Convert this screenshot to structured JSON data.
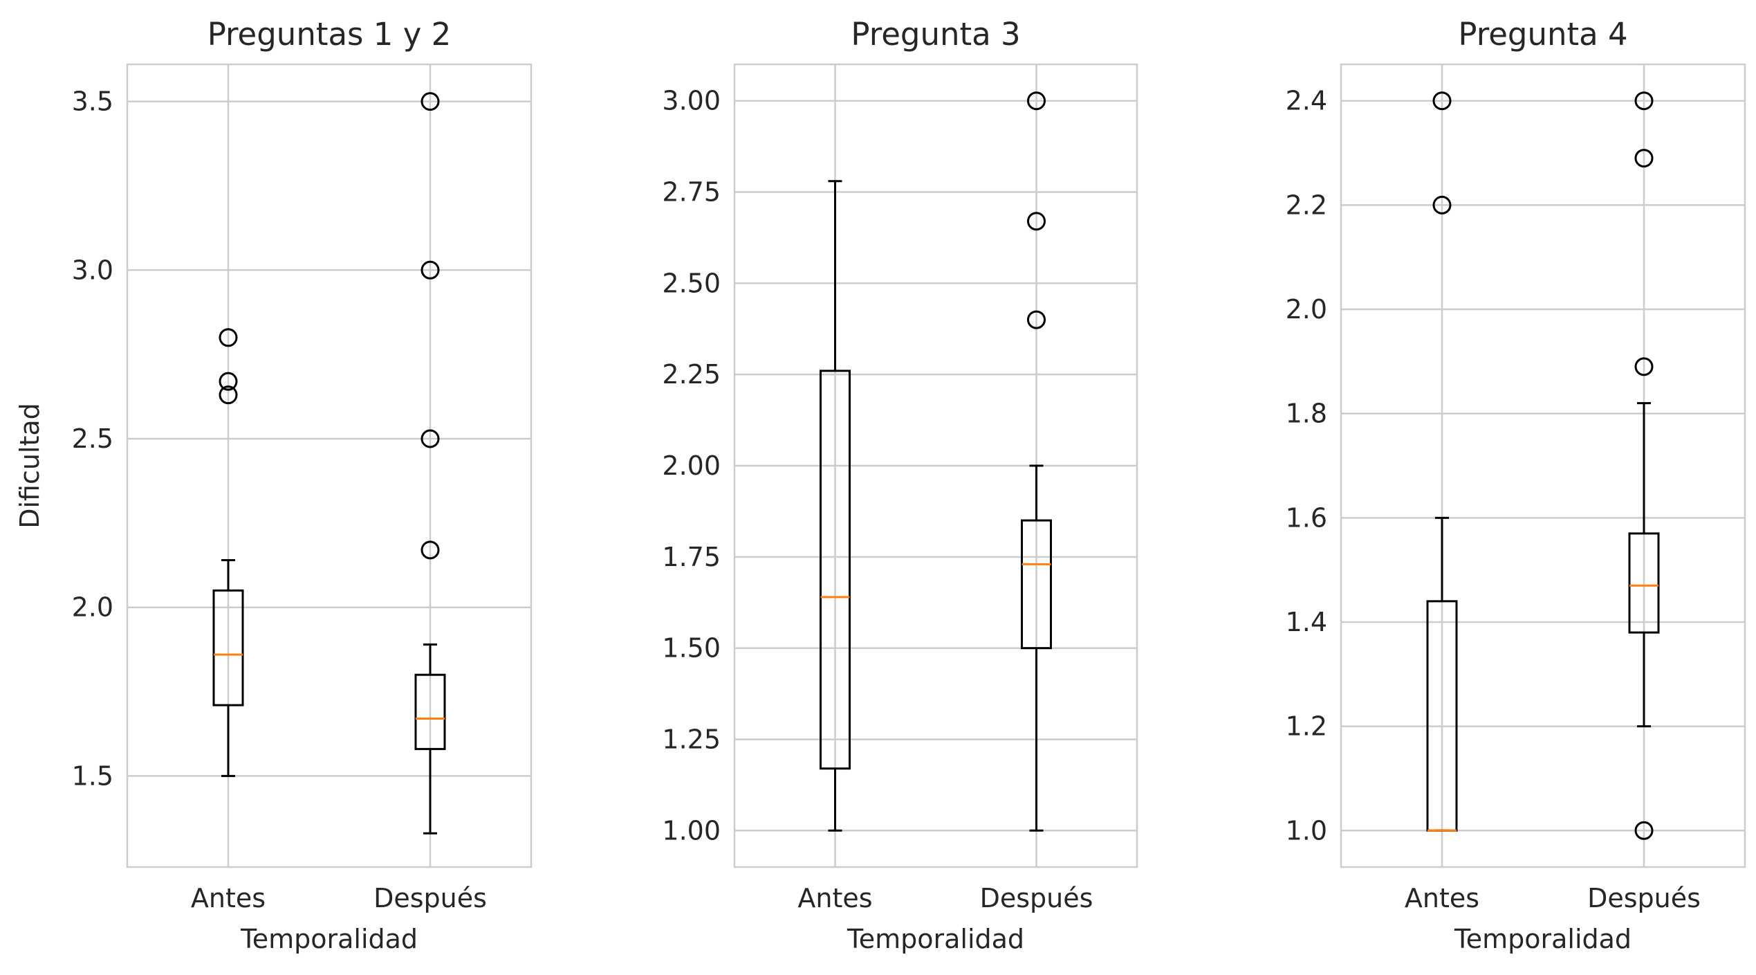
{
  "chart_data": [
    {
      "type": "box",
      "title": "Preguntas 1 y 2",
      "xlabel": "Temporalidad",
      "ylabel": "Dificultad",
      "ylim": [
        1.23,
        3.61
      ],
      "yticks": [
        1.5,
        2.0,
        2.5,
        3.0,
        3.5
      ],
      "ytick_labels": [
        "1.5",
        "2.0",
        "2.5",
        "3.0",
        "3.5"
      ],
      "grid": true,
      "categories": [
        "Antes",
        "Después"
      ],
      "boxes": [
        {
          "name": "Antes",
          "whisker_low": 1.5,
          "q1": 1.71,
          "median": 1.86,
          "q3": 2.05,
          "whisker_high": 2.14,
          "outliers": [
            2.8,
            2.67,
            2.63
          ]
        },
        {
          "name": "Después",
          "whisker_low": 1.33,
          "q1": 1.58,
          "median": 1.67,
          "q3": 1.8,
          "whisker_high": 1.89,
          "outliers": [
            3.5,
            3.0,
            2.5,
            2.17
          ]
        }
      ]
    },
    {
      "type": "box",
      "title": "Pregunta 3",
      "xlabel": "Temporalidad",
      "ylabel": "",
      "ylim": [
        0.9,
        3.1
      ],
      "yticks": [
        1.0,
        1.25,
        1.5,
        1.75,
        2.0,
        2.25,
        2.5,
        2.75,
        3.0
      ],
      "ytick_labels": [
        "1.00",
        "1.25",
        "1.50",
        "1.75",
        "2.00",
        "2.25",
        "2.50",
        "2.75",
        "3.00"
      ],
      "grid": true,
      "categories": [
        "Antes",
        "Después"
      ],
      "boxes": [
        {
          "name": "Antes",
          "whisker_low": 1.0,
          "q1": 1.17,
          "median": 1.64,
          "q3": 2.26,
          "whisker_high": 2.78,
          "outliers": []
        },
        {
          "name": "Después",
          "whisker_low": 1.0,
          "q1": 1.5,
          "median": 1.73,
          "q3": 1.85,
          "whisker_high": 2.0,
          "outliers": [
            3.0,
            2.67,
            2.4
          ]
        }
      ]
    },
    {
      "type": "box",
      "title": "Pregunta 4",
      "xlabel": "Temporalidad",
      "ylabel": "",
      "ylim": [
        0.93,
        2.47
      ],
      "yticks": [
        1.0,
        1.2,
        1.4,
        1.6,
        1.8,
        2.0,
        2.2,
        2.4
      ],
      "ytick_labels": [
        "1.0",
        "1.2",
        "1.4",
        "1.6",
        "1.8",
        "2.0",
        "2.2",
        "2.4"
      ],
      "grid": true,
      "categories": [
        "Antes",
        "Después"
      ],
      "boxes": [
        {
          "name": "Antes",
          "whisker_low": 1.0,
          "q1": 1.0,
          "median": 1.0,
          "q3": 1.44,
          "whisker_high": 1.6,
          "outliers": [
            2.4,
            2.2
          ]
        },
        {
          "name": "Después",
          "whisker_low": 1.2,
          "q1": 1.38,
          "median": 1.47,
          "q3": 1.57,
          "whisker_high": 1.82,
          "outliers": [
            2.4,
            2.29,
            1.89,
            1.0
          ]
        }
      ]
    }
  ],
  "colors": {
    "grid": "#cccccc",
    "frame": "#cccccc",
    "box": "#000000",
    "median": "#ff7f0e",
    "text": "#262626"
  }
}
